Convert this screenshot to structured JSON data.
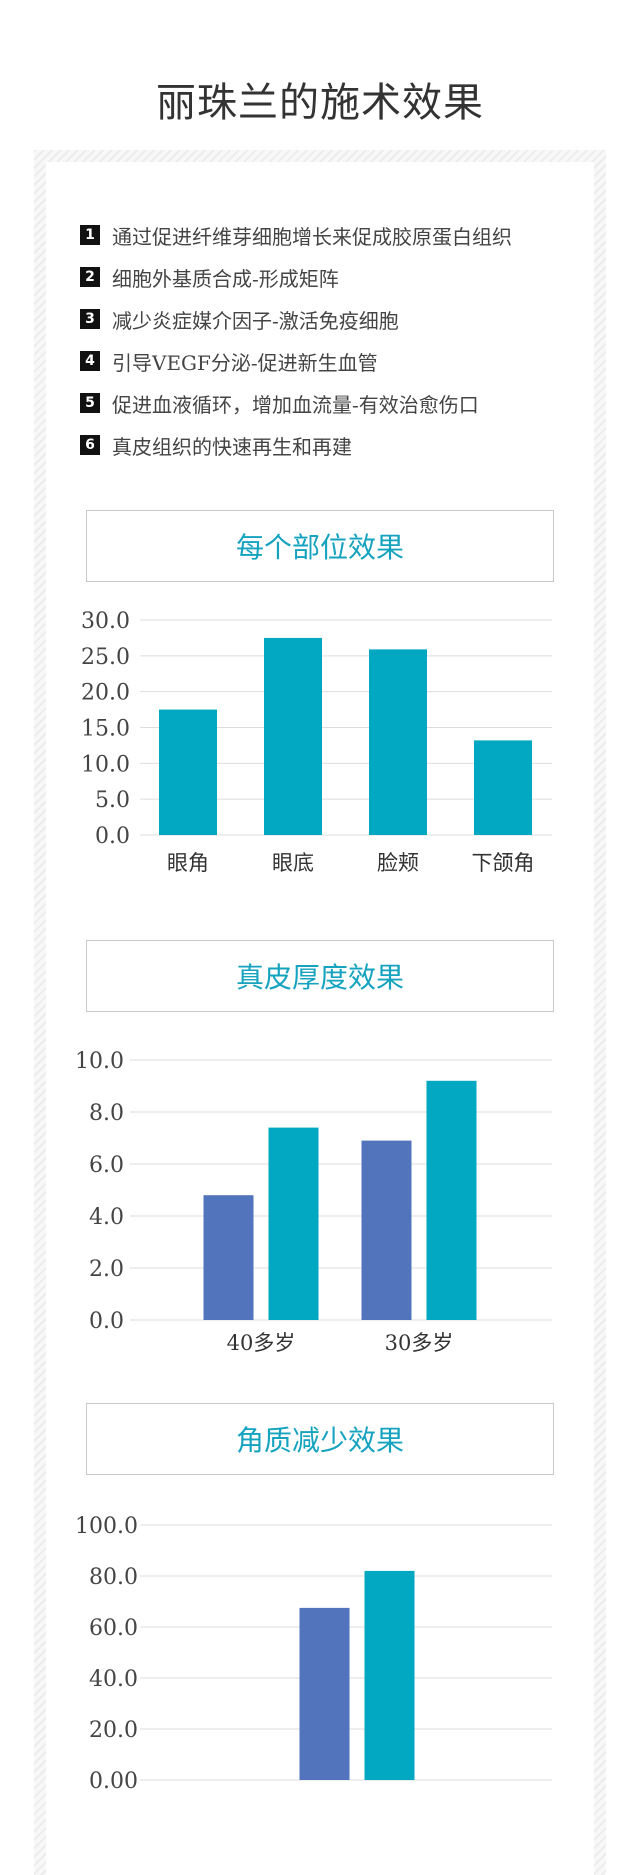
{
  "page": {
    "title": "丽珠兰的施术效果"
  },
  "benefits": [
    {
      "num": "1",
      "text": "通过促进纤维芽细胞增长来促成胶原蛋白组织"
    },
    {
      "num": "2",
      "text": "细胞外基质合成-形成矩阵"
    },
    {
      "num": "3",
      "text": "减少炎症媒介因子-激活免疫细胞"
    },
    {
      "num": "4",
      "text": "引导VEGF分泌-促进新生血管"
    },
    {
      "num": "5",
      "text": "促进血液循环，增加血流量-有效治愈伤口"
    },
    {
      "num": "6",
      "text": "真皮组织的快速再生和再建"
    }
  ],
  "sections": [
    {
      "title": "每个部位效果"
    },
    {
      "title": "真皮厚度效果"
    },
    {
      "title": "角质减少效果"
    }
  ],
  "colors": {
    "teal": "#02a7c2",
    "blue": "#5274bd",
    "grid": "#dddddd",
    "accent_text": "#16a3bf"
  },
  "chart_data": [
    {
      "type": "bar",
      "categories": [
        "眼角",
        "眼底",
        "脸颊",
        "下颌角"
      ],
      "series": [
        {
          "values": [
            17.5,
            27.5,
            25.9,
            13.2
          ]
        }
      ],
      "ylim": [
        0,
        30
      ],
      "yticks": [
        "30.0",
        "25.0",
        "20.0",
        "15.0",
        "10.0",
        "5.0",
        "0.0"
      ],
      "grid": true
    },
    {
      "type": "bar",
      "categories": [
        "40多岁",
        "30多岁"
      ],
      "series": [
        {
          "values": [
            4.8,
            6.9
          ]
        },
        {
          "values": [
            7.4,
            9.2
          ]
        }
      ],
      "ylim": [
        0,
        10
      ],
      "yticks": [
        "10.0",
        "8.0",
        "6.0",
        "4.0",
        "2.0",
        "0.0"
      ],
      "grid": true
    },
    {
      "type": "bar",
      "categories": [
        ""
      ],
      "series": [
        {
          "values": [
            67.5
          ]
        },
        {
          "values": [
            82.0
          ]
        }
      ],
      "ylim": [
        0,
        100
      ],
      "yticks": [
        "100.0",
        "80.0",
        "60.0",
        "40.0",
        "20.0",
        "0.00"
      ],
      "grid": true
    }
  ]
}
